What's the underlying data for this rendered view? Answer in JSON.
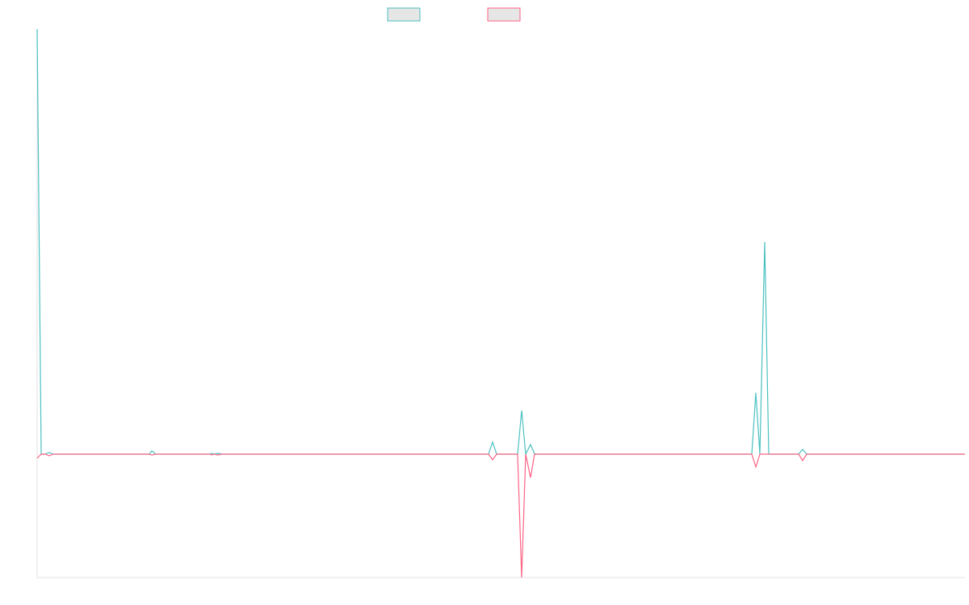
{
  "chart_data": {
    "type": "line",
    "x": [
      0,
      5,
      10,
      15,
      20,
      139,
      142,
      147,
      214,
      216,
      219,
      224,
      229,
      559,
      564,
      569,
      595,
      600,
      605,
      611,
      616,
      885,
      890,
      895,
      901,
      906,
      943,
      948,
      953,
      1149
    ],
    "xlim": [
      0,
      1149
    ],
    "ylim": [
      -153,
      527
    ],
    "legend": "top",
    "series": [
      {
        "color": "#4bc0c0",
        "values": [
          527,
          0,
          0,
          2,
          0,
          0,
          4,
          0,
          0,
          1,
          0,
          1,
          0,
          0,
          15,
          0,
          0,
          54,
          0,
          12,
          0,
          0,
          76,
          0,
          263,
          0,
          0,
          6,
          0,
          0
        ]
      },
      {
        "color": "#ff6384",
        "values": [
          -5,
          0,
          0,
          -2,
          0,
          0,
          -1,
          0,
          0,
          -1,
          0,
          -1,
          0,
          0,
          -7,
          0,
          0,
          -153,
          0,
          -29,
          0,
          0,
          -16,
          0,
          0,
          0,
          0,
          -8,
          0,
          0
        ]
      }
    ]
  }
}
